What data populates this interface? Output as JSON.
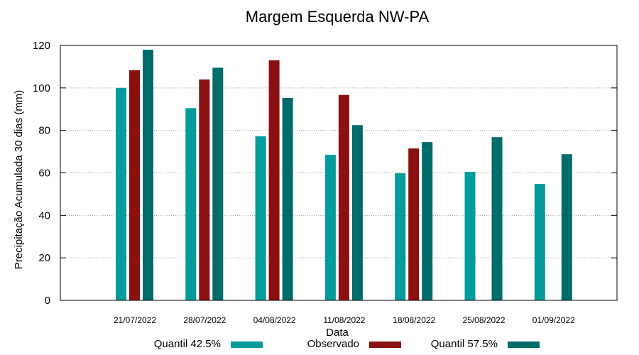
{
  "chart_data": {
    "type": "bar",
    "title": "Margem Esquerda NW-PA",
    "xlabel": "Data",
    "ylabel": "Precipitação Acumulada 30 dias (mm)",
    "ylim": [
      0,
      120
    ],
    "yticks": [
      0,
      20,
      40,
      60,
      80,
      100,
      120
    ],
    "grid": true,
    "legend_position": "bottom",
    "categories": [
      "21/07/2022",
      "28/07/2022",
      "04/08/2022",
      "11/08/2022",
      "18/08/2022",
      "25/08/2022",
      "01/09/2022"
    ],
    "series": [
      {
        "name": "Quantil 42.5%",
        "color": "#009b9b",
        "values": [
          100,
          90.5,
          77.2,
          68.5,
          59.8,
          60.5,
          54.8
        ]
      },
      {
        "name": "Observado",
        "color": "#8b1010",
        "values": [
          108.3,
          104,
          113,
          96.7,
          71.5,
          null,
          null
        ]
      },
      {
        "name": "Quantil 57.5%",
        "color": "#006b6b",
        "values": [
          118,
          109.5,
          95.3,
          82.5,
          74.5,
          76.8,
          68.8
        ]
      }
    ]
  }
}
